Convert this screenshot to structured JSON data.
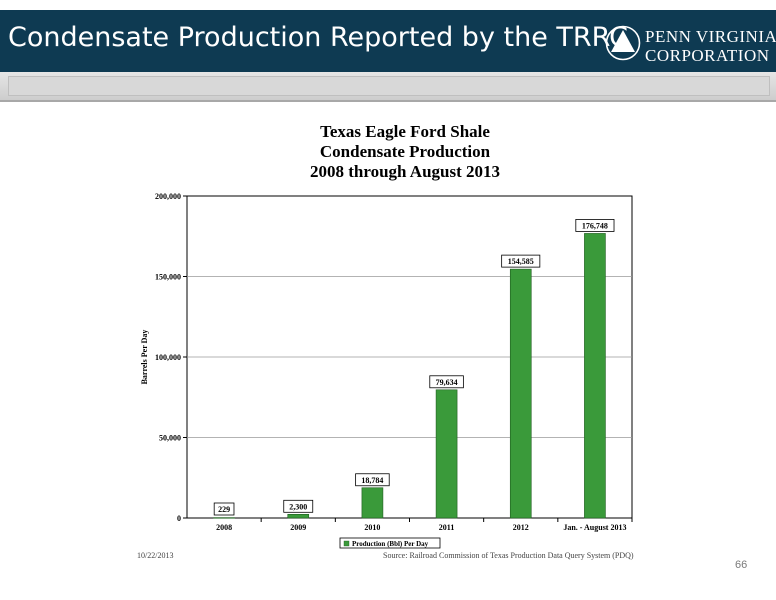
{
  "header": {
    "title": "Condensate Production Reported by the TRRC",
    "logo_line1": "PENN VIRGINIA",
    "logo_line2": "CORPORATION",
    "logo_icon": "triangle-emblem-icon"
  },
  "chart_data": {
    "type": "bar",
    "title": [
      "Texas Eagle Ford Shale",
      "Condensate Production",
      "2008 through August 2013"
    ],
    "categories": [
      "2008",
      "2009",
      "2010",
      "2011",
      "2012",
      "Jan. - August 2013"
    ],
    "values": [
      229,
      2300,
      18784,
      79634,
      154585,
      176748
    ],
    "data_labels": [
      "229",
      "2,300",
      "18,784",
      "79,634",
      "154,585",
      "176,748"
    ],
    "ylabel": "Barrels Per Day",
    "yticks": [
      "0",
      "50,000",
      "100,000",
      "150,000",
      "200,000"
    ],
    "ylim": [
      0,
      200000
    ],
    "legend": "Production (Bbl) Per Day",
    "legend_position": "bottom-center",
    "grid": true,
    "bar_color": "#3a9a3a"
  },
  "footer": {
    "date": "10/22/2013",
    "source": "Source: Railroad Commission of Texas Production Data Query System (PDQ)",
    "page_number": "66"
  }
}
